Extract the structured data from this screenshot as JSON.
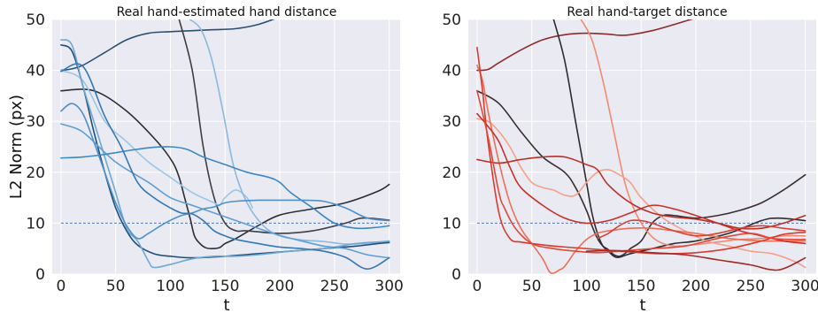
{
  "chart_data": [
    {
      "type": "line",
      "title": "Real hand-estimated hand distance",
      "xlabel": "t",
      "ylabel": "L2 Norm (px)",
      "xlim": [
        -8,
        310
      ],
      "ylim": [
        0,
        50
      ],
      "xticks": [
        "0",
        "50",
        "100",
        "150",
        "200",
        "250",
        "300"
      ],
      "yticks": [
        "0",
        "10",
        "20",
        "30",
        "40",
        "50"
      ],
      "grid": true,
      "background": "#EAEAF2",
      "reference_line": {
        "y": 10,
        "color": "#4C72B0",
        "style": "dashed"
      },
      "series": [
        {
          "color": "#2C4F6E",
          "x": [
            0,
            10,
            20,
            40,
            60,
            80,
            100,
            120,
            140,
            160,
            180,
            200
          ],
          "y": [
            40,
            40.3,
            41,
            43.5,
            46,
            47.3,
            47.6,
            47.8,
            48,
            48.2,
            49,
            50.5
          ]
        },
        {
          "color": "#2A2E35",
          "x": [
            0,
            30,
            60,
            88,
            102,
            108,
            113,
            118,
            122,
            127,
            132,
            138,
            145,
            150,
            160,
            180,
            200,
            230,
            260,
            290,
            300
          ],
          "y": [
            36,
            36,
            32,
            26,
            22,
            19,
            15,
            11,
            7.5,
            6,
            5.2,
            5,
            5.2,
            6,
            7,
            9.5,
            11.6,
            12.8,
            14,
            16.3,
            17.6
          ]
        },
        {
          "color": "#3D3F45",
          "x": [
            108,
            120,
            130,
            140,
            150,
            160,
            170,
            200,
            230,
            260,
            275,
            300
          ],
          "y": [
            50,
            40,
            25,
            15,
            10,
            8.5,
            8.5,
            8,
            8.5,
            10,
            11,
            10.6
          ]
        },
        {
          "color": "#9BC6E3",
          "x": [
            0,
            20,
            40,
            60,
            80,
            100,
            120,
            140,
            145,
            150,
            160,
            170,
            175
          ],
          "y": [
            40,
            38,
            30,
            26,
            22,
            19,
            16,
            14,
            13.5,
            15,
            16.5,
            15,
            13
          ]
        },
        {
          "color": "#8AB8DE",
          "x": [
            118,
            128,
            138,
            148,
            158,
            170,
            185,
            200,
            220,
            240,
            260,
            280,
            300
          ],
          "y": [
            50,
            48,
            42,
            32,
            21,
            14,
            9.5,
            7.5,
            6.7,
            6.4,
            5.9,
            6,
            6.2
          ]
        },
        {
          "color": "#1F4E79",
          "x": [
            0,
            10,
            20,
            30,
            40,
            50,
            60,
            70,
            85,
            100,
            120,
            150,
            180,
            210,
            240,
            270,
            290,
            300
          ],
          "y": [
            45,
            43.8,
            37,
            28,
            20,
            13,
            8.5,
            5.7,
            4,
            3.5,
            3.2,
            3.5,
            4,
            4.5,
            5,
            5.5,
            6,
            6.2
          ]
        },
        {
          "color": "#6FA8D3",
          "x": [
            0,
            10,
            20,
            30,
            40,
            50,
            60,
            70,
            80,
            85,
            100,
            120,
            140,
            160,
            180,
            210,
            240,
            270,
            290,
            300
          ],
          "y": [
            46,
            45,
            37,
            30,
            23,
            16,
            9,
            6.5,
            2.5,
            1.3,
            1.9,
            3,
            3.5,
            3.5,
            3.8,
            4.5,
            5,
            6,
            6.3,
            6.5
          ]
        },
        {
          "color": "#5F9ED1",
          "x": [
            0,
            15,
            25,
            50,
            80,
            100,
            120,
            140,
            160,
            180,
            200,
            220,
            240,
            260,
            280,
            300
          ],
          "y": [
            29.5,
            28.5,
            27,
            22,
            18,
            15,
            13.5,
            12,
            10.5,
            9,
            7.6,
            6.5,
            5.5,
            5,
            3.8,
            3.2
          ]
        },
        {
          "color": "#3C88C2",
          "x": [
            0,
            20,
            40,
            60,
            80,
            100,
            115,
            130,
            150,
            170,
            190,
            200,
            210,
            230,
            250,
            270,
            290,
            300
          ],
          "y": [
            22.8,
            23,
            23.5,
            24.2,
            24.8,
            25,
            24.5,
            23,
            21.5,
            20,
            19,
            18,
            16,
            13,
            10,
            9,
            9.2,
            9.5
          ]
        },
        {
          "color": "#4E90C7",
          "x": [
            0,
            10,
            20,
            30,
            40,
            50,
            60,
            70,
            80,
            95,
            110,
            120,
            130,
            140,
            150,
            160,
            180,
            200,
            220,
            240,
            260,
            280,
            300
          ],
          "y": [
            32,
            33.5,
            31.5,
            26,
            20,
            14,
            9.5,
            7,
            8,
            10,
            11.5,
            12,
            12.8,
            13.2,
            14,
            14.3,
            14.5,
            14.5,
            14.5,
            14.3,
            13,
            11,
            10.5
          ]
        },
        {
          "color": "#3478B4",
          "x": [
            0,
            20,
            40,
            55,
            70,
            85,
            100,
            110,
            120,
            130,
            140,
            150,
            160,
            180,
            200,
            220,
            240,
            260,
            280,
            300
          ],
          "y": [
            39.8,
            40.8,
            31,
            25,
            18,
            15,
            13,
            12,
            11.8,
            10.5,
            8.5,
            7.5,
            6.8,
            6,
            5.3,
            5,
            4.5,
            3.3,
            1,
            3.2
          ]
        }
      ]
    },
    {
      "type": "line",
      "title": "Real hand-target distance",
      "xlabel": "t",
      "ylabel": "",
      "xlim": [
        -8,
        310
      ],
      "ylim": [
        0,
        50
      ],
      "xticks": [
        "0",
        "50",
        "100",
        "150",
        "200",
        "250",
        "300"
      ],
      "yticks": [
        "0",
        "10",
        "20",
        "30",
        "40",
        "50"
      ],
      "grid": true,
      "background": "#EAEAF2",
      "reference_line": {
        "y": 10,
        "color": "#4C72B0",
        "style": "dashed"
      },
      "series": [
        {
          "color": "#8E2A2A",
          "x": [
            0,
            10,
            20,
            40,
            60,
            80,
            100,
            120,
            130,
            140,
            160,
            180,
            200
          ],
          "y": [
            40,
            40.2,
            41.5,
            44,
            46,
            47,
            47.3,
            47.1,
            46.9,
            47,
            47.8,
            49,
            50.3
          ]
        },
        {
          "color": "#3A2E32",
          "x": [
            0,
            20,
            40,
            60,
            80,
            90,
            100,
            105,
            110,
            115,
            120,
            125,
            130,
            135,
            140,
            150,
            160,
            170,
            180,
            200,
            220,
            240,
            260,
            280,
            300
          ],
          "y": [
            36,
            33.5,
            28,
            23,
            20,
            17,
            12.5,
            9.5,
            7,
            5.5,
            4.8,
            3.8,
            3.5,
            4,
            5,
            6.5,
            10,
            11.5,
            11.5,
            11,
            11.5,
            12.5,
            14,
            16.5,
            19.5
          ]
        },
        {
          "color": "#2E2C30",
          "x": [
            70,
            80,
            90,
            100,
            105,
            110,
            115,
            120,
            125,
            130,
            140,
            160,
            180,
            200,
            230,
            260,
            275,
            300
          ],
          "y": [
            50,
            42,
            30,
            18,
            12,
            8,
            5.5,
            4.5,
            3.5,
            3.3,
            4,
            5,
            6,
            6.5,
            8,
            10.5,
            11,
            10.5
          ]
        },
        {
          "color": "#F08A73",
          "x": [
            95,
            105,
            115,
            125,
            135,
            145,
            155,
            165,
            180,
            200,
            220,
            240,
            260,
            280,
            300
          ],
          "y": [
            50,
            46,
            38,
            28,
            18,
            12,
            8.5,
            6.5,
            5.5,
            5.8,
            6.3,
            6.8,
            7,
            7.5,
            7.5
          ]
        },
        {
          "color": "#F4A08A",
          "x": [
            0,
            10,
            20,
            30,
            40,
            50,
            60,
            70,
            80,
            90,
            100,
            110,
            120,
            130,
            140,
            150,
            170,
            190,
            210,
            230,
            250,
            270,
            290,
            300
          ],
          "y": [
            30.5,
            30,
            28,
            25,
            21,
            18,
            17,
            16.5,
            15.5,
            15.5,
            18,
            20,
            20.5,
            19.5,
            18,
            15,
            11,
            8.5,
            6.5,
            5.5,
            4.5,
            4,
            2.5,
            1.3
          ]
        },
        {
          "color": "#EE6E56",
          "x": [
            0,
            5,
            10,
            20,
            30,
            40,
            50,
            60,
            66,
            70,
            75,
            80,
            90,
            100,
            110,
            120,
            140,
            160,
            180,
            200,
            230,
            260,
            290,
            300
          ],
          "y": [
            41,
            38,
            32,
            22,
            14,
            9,
            6,
            3,
            0.5,
            0.2,
            0.8,
            1.5,
            4.5,
            6.8,
            8,
            8.5,
            9,
            9,
            8.5,
            8,
            7,
            6.5,
            6.5,
            6.5
          ]
        },
        {
          "color": "#D93A2E",
          "x": [
            0,
            5,
            10,
            20,
            30,
            40,
            50,
            70,
            100,
            130,
            150,
            170,
            200,
            230,
            260,
            280,
            300
          ],
          "y": [
            44.5,
            36,
            26,
            12,
            7,
            6.3,
            6,
            5.5,
            5,
            4.5,
            4.2,
            4,
            4.2,
            5,
            6.5,
            7.8,
            8.2
          ]
        },
        {
          "color": "#C8312A",
          "x": [
            0,
            10,
            20,
            30,
            40,
            60,
            80,
            100,
            120,
            140,
            160,
            180,
            200,
            220,
            240,
            260,
            280,
            300
          ],
          "y": [
            31.5,
            29,
            26,
            21,
            17,
            13.5,
            11,
            10,
            10.5,
            12,
            13.5,
            12.8,
            11.5,
            10,
            8.5,
            7.5,
            6.5,
            6
          ]
        },
        {
          "color": "#B8302A",
          "x": [
            0,
            20,
            40,
            60,
            80,
            100,
            110,
            120,
            140,
            160,
            180,
            200,
            220,
            240,
            260,
            280,
            300
          ],
          "y": [
            22.5,
            21.8,
            22.5,
            23,
            23,
            21.5,
            20.5,
            17.5,
            14,
            12,
            11.2,
            10.8,
            10,
            9,
            9,
            10,
            11.5
          ]
        },
        {
          "color": "#E0483A",
          "x": [
            0,
            10,
            20,
            25,
            35,
            50,
            70,
            90,
            110,
            130,
            160,
            190,
            220,
            250,
            270,
            290,
            300
          ],
          "y": [
            36,
            27,
            16,
            13,
            9,
            6,
            5,
            4.5,
            4.2,
            4.5,
            5,
            5.5,
            7,
            8,
            7,
            6.8,
            6.8
          ]
        },
        {
          "color": "#D24436",
          "x": [
            110,
            120,
            130,
            140,
            150,
            160,
            180,
            200,
            220,
            240,
            260,
            280,
            300
          ],
          "y": [
            7,
            8,
            9.5,
            10.5,
            10.5,
            10,
            8.5,
            7.5,
            8,
            9,
            9.5,
            9,
            8.5
          ]
        },
        {
          "color": "#A02A26",
          "x": [
            100,
            130,
            160,
            190,
            220,
            250,
            265,
            275,
            285,
            300
          ],
          "y": [
            4.5,
            4.6,
            4.2,
            3.8,
            2.8,
            1.8,
            1,
            0.8,
            1.5,
            3.2
          ]
        }
      ]
    }
  ]
}
